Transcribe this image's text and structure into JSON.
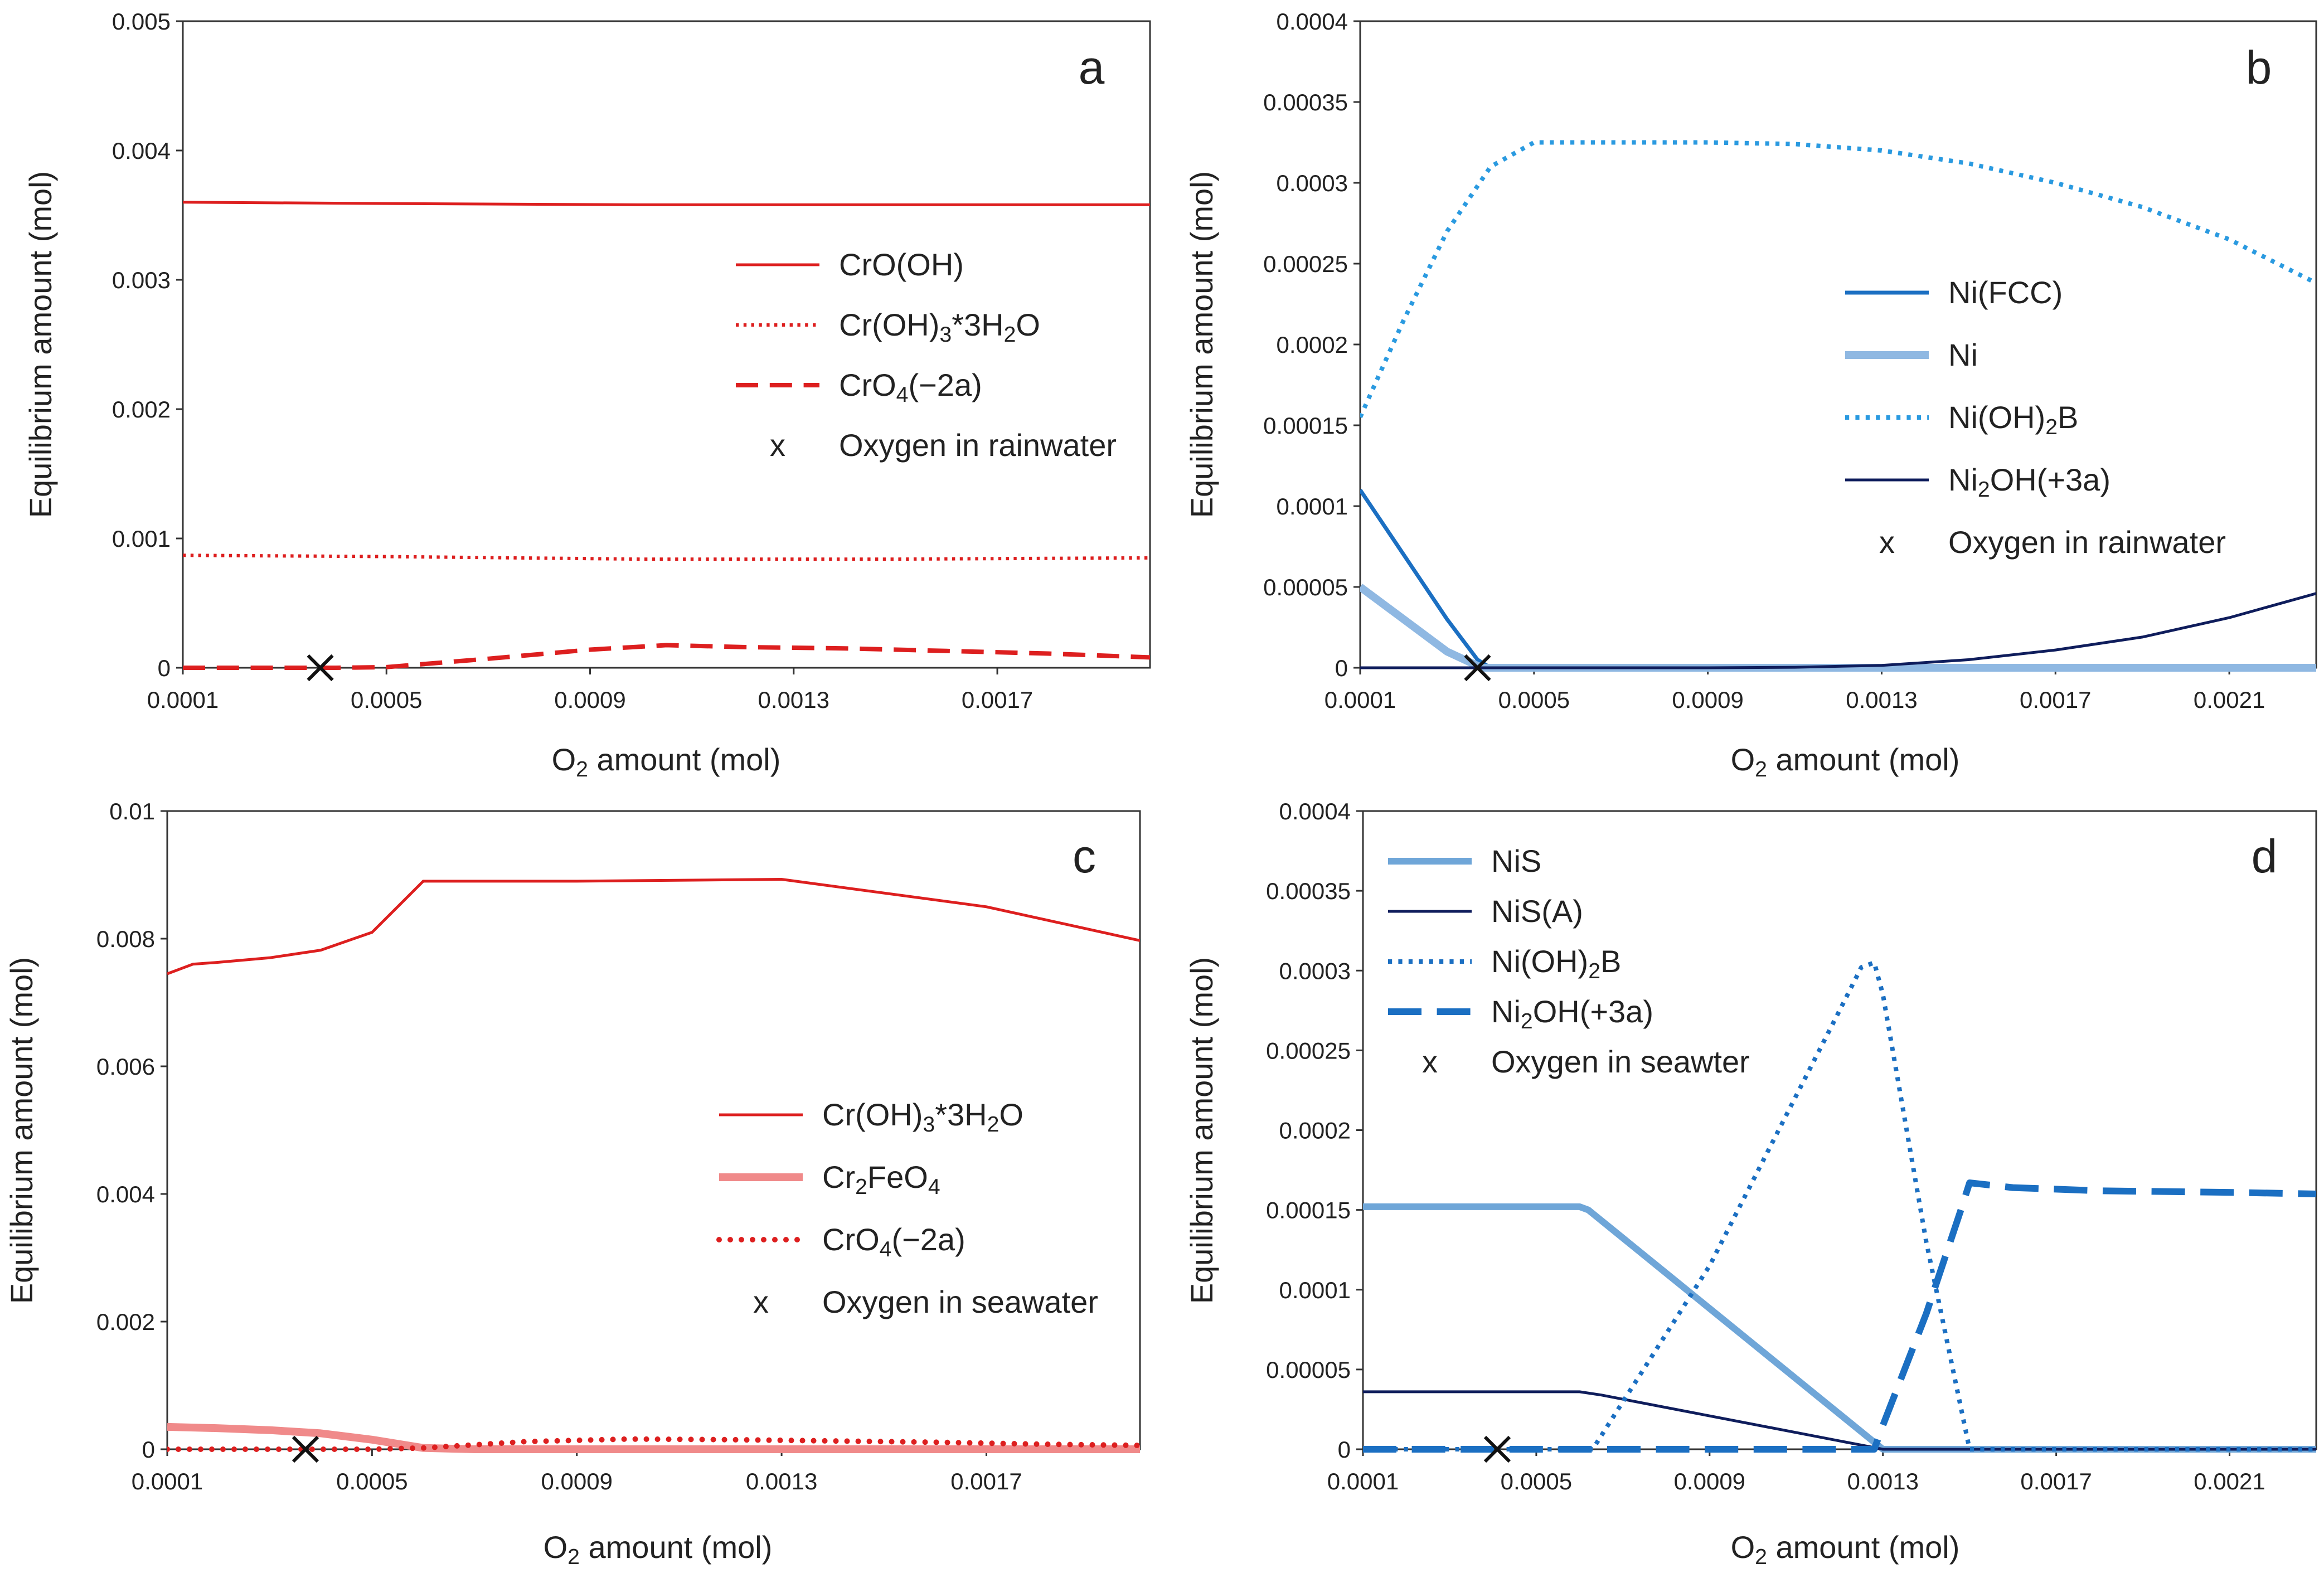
{
  "chart_data": [
    {
      "type": "line",
      "panel": "a",
      "xlabel": {
        "base": "O",
        "sub": "2",
        "rest": " amount (mol)"
      },
      "ylabel": "Equilibrium amount (mol)",
      "xlim": [
        0.0001,
        0.002
      ],
      "ylim": [
        0,
        0.005
      ],
      "xticks": [
        "0.0001",
        "0.0005",
        "0.0009",
        "0.0013",
        "0.0017"
      ],
      "xtick_values": [
        0.0001,
        0.0005,
        0.0009,
        0.0013,
        0.0017
      ],
      "yticks": [
        "0",
        "0.001",
        "0.002",
        "0.003",
        "0.004",
        "0.005"
      ],
      "ytick_values": [
        0,
        0.001,
        0.002,
        0.003,
        0.004,
        0.005
      ],
      "legend_position": "middle-right",
      "series": [
        {
          "name": "CrO(OH)",
          "label": [
            [
              "t",
              "CrO(OH)"
            ]
          ],
          "color": "#dd1f1f",
          "style": "solid",
          "width": 5,
          "x": [
            0.0001,
            0.0005,
            0.001,
            0.0015,
            0.002
          ],
          "y": [
            0.0036,
            0.00359,
            0.00358,
            0.00358,
            0.00358
          ]
        },
        {
          "name": "Cr(OH)3*3H2O",
          "label": [
            [
              "t",
              "Cr(OH)"
            ],
            [
              "s",
              "3"
            ],
            [
              "t",
              "*3H"
            ],
            [
              "s",
              "2"
            ],
            [
              "t",
              "O"
            ]
          ],
          "color": "#dd1f1f",
          "style": "dotted",
          "width": 6,
          "x": [
            0.0001,
            0.0005,
            0.001,
            0.0015,
            0.002
          ],
          "y": [
            0.00087,
            0.00086,
            0.00084,
            0.00084,
            0.00085
          ]
        },
        {
          "name": "CrO4(-2a)",
          "label": [
            [
              "t",
              "CrO"
            ],
            [
              "s",
              "4"
            ],
            [
              "t",
              "(−2a)"
            ]
          ],
          "color": "#dd1f1f",
          "style": "dashed",
          "width": 8,
          "x": [
            0.0001,
            0.0004,
            0.0005,
            0.0007,
            0.0009,
            0.00105,
            0.0012,
            0.0014,
            0.0016,
            0.0018,
            0.002
          ],
          "y": [
            0,
            0,
            5e-06,
            7e-05,
            0.00014,
            0.000175,
            0.00016,
            0.00015,
            0.00013,
            0.00011,
            8e-05
          ]
        }
      ],
      "marker": {
        "name": "Oxygen in rainwater",
        "x": 0.00037,
        "y": 0
      }
    },
    {
      "type": "line",
      "panel": "b",
      "xlabel": {
        "base": "O",
        "sub": "2",
        "rest": " amount (mol)"
      },
      "ylabel": "Equilibrium amount (mol)",
      "xlim": [
        0.0001,
        0.0023
      ],
      "ylim": [
        0,
        0.0004
      ],
      "xticks": [
        "0.0001",
        "0.0005",
        "0.0009",
        "0.0013",
        "0.0017",
        "0.0021"
      ],
      "xtick_values": [
        0.0001,
        0.0005,
        0.0009,
        0.0013,
        0.0017,
        0.0021
      ],
      "yticks": [
        "0",
        "0.00005",
        "0.0001",
        "0.00015",
        "0.0002",
        "0.00025",
        "0.0003",
        "0.00035",
        "0.0004"
      ],
      "ytick_values": [
        0,
        5e-05,
        0.0001,
        0.00015,
        0.0002,
        0.00025,
        0.0003,
        0.00035,
        0.0004
      ],
      "legend_position": "middle-right",
      "series": [
        {
          "name": "Ni(FCC)",
          "label": [
            [
              "t",
              "Ni(FCC)"
            ]
          ],
          "color": "#1b6fc2",
          "style": "solid",
          "width": 7,
          "x": [
            0.0001,
            0.0002,
            0.0003,
            0.00037,
            0.0004,
            0.001,
            0.0023
          ],
          "y": [
            0.00011,
            7e-05,
            3e-05,
            5e-06,
            0,
            0,
            0
          ]
        },
        {
          "name": "Ni",
          "label": [
            [
              "t",
              "Ni"
            ]
          ],
          "color": "#8fb8e2",
          "style": "solid",
          "width": 14,
          "x": [
            0.0001,
            0.0002,
            0.0003,
            0.00038,
            0.0004,
            0.001,
            0.0023
          ],
          "y": [
            5e-05,
            3e-05,
            1e-05,
            0,
            0,
            0,
            0
          ]
        },
        {
          "name": "Ni(OH)2B",
          "label": [
            [
              "t",
              "Ni(OH)"
            ],
            [
              "s",
              "2"
            ],
            [
              "t",
              "B"
            ]
          ],
          "color": "#2a9ae0",
          "style": "dotted",
          "width": 8,
          "x": [
            0.0001,
            0.0002,
            0.0003,
            0.0004,
            0.0005,
            0.0007,
            0.0009,
            0.0011,
            0.0013,
            0.0015,
            0.0017,
            0.0019,
            0.0021,
            0.0023
          ],
          "y": [
            0.000155,
            0.000215,
            0.00027,
            0.00031,
            0.000325,
            0.000325,
            0.000325,
            0.000324,
            0.00032,
            0.000312,
            0.0003,
            0.000285,
            0.000265,
            0.000238
          ]
        },
        {
          "name": "Ni2OH(+3a)",
          "label": [
            [
              "t",
              "Ni"
            ],
            [
              "s",
              "2"
            ],
            [
              "t",
              "OH(+3a)"
            ]
          ],
          "color": "#0f1d5c",
          "style": "solid",
          "width": 5,
          "x": [
            0.0001,
            0.0009,
            0.0011,
            0.0013,
            0.0015,
            0.0017,
            0.0019,
            0.0021,
            0.0023
          ],
          "y": [
            0,
            0,
            3e-07,
            1.5e-06,
            5e-06,
            1.1e-05,
            1.9e-05,
            3.1e-05,
            4.6e-05
          ]
        }
      ],
      "marker": {
        "name": "Oxygen in rainwater",
        "x": 0.00037,
        "y": 0
      }
    },
    {
      "type": "line",
      "panel": "c",
      "xlabel": {
        "base": "O",
        "sub": "2",
        "rest": " amount (mol)"
      },
      "ylabel": "Equilibrium amount (mol)",
      "xlim": [
        0.0001,
        0.002
      ],
      "ylim": [
        0,
        0.01
      ],
      "xticks": [
        "0.0001",
        "0.0005",
        "0.0009",
        "0.0013",
        "0.0017"
      ],
      "xtick_values": [
        0.0001,
        0.0005,
        0.0009,
        0.0013,
        0.0017
      ],
      "yticks": [
        "0",
        "0.002",
        "0.004",
        "0.006",
        "0.008",
        "0.01"
      ],
      "ytick_values": [
        0,
        0.002,
        0.004,
        0.006,
        0.008,
        0.01
      ],
      "legend_position": "lower-right",
      "series": [
        {
          "name": "Cr(OH)3*3H2O",
          "label": [
            [
              "t",
              "Cr(OH)"
            ],
            [
              "s",
              "3"
            ],
            [
              "t",
              "*3H"
            ],
            [
              "s",
              "2"
            ],
            [
              "t",
              "O"
            ]
          ],
          "color": "#dd1f1f",
          "style": "solid",
          "width": 5,
          "x": [
            0.0001,
            0.00015,
            0.0002,
            0.0003,
            0.0004,
            0.0005,
            0.00055,
            0.0006,
            0.0009,
            0.0013,
            0.0017,
            0.002
          ],
          "y": [
            0.00745,
            0.0076,
            0.00763,
            0.0077,
            0.00782,
            0.0081,
            0.0085,
            0.0089,
            0.0089,
            0.00893,
            0.0085,
            0.00797
          ]
        },
        {
          "name": "Cr2FeO4",
          "label": [
            [
              "t",
              "Cr"
            ],
            [
              "s",
              "2"
            ],
            [
              "t",
              "FeO"
            ],
            [
              "s",
              "4"
            ]
          ],
          "color": "#f08a8a",
          "style": "solid",
          "width": 14,
          "x": [
            0.0001,
            0.0002,
            0.0003,
            0.0004,
            0.0005,
            0.0006,
            0.0007,
            0.002
          ],
          "y": [
            0.00035,
            0.00033,
            0.0003,
            0.00025,
            0.00015,
            2e-05,
            0,
            0
          ]
        },
        {
          "name": "CrO4(-2a)",
          "label": [
            [
              "t",
              "CrO"
            ],
            [
              "s",
              "4"
            ],
            [
              "t",
              "(−2a)"
            ]
          ],
          "color": "#dd1f1f",
          "style": "dotted-bold",
          "width": 10,
          "x": [
            0.0001,
            0.0005,
            0.0006,
            0.0008,
            0.001,
            0.0012,
            0.0014,
            0.0016,
            0.0018,
            0.002
          ],
          "y": [
            0,
            0,
            2e-05,
            0.00012,
            0.00016,
            0.00015,
            0.00013,
            0.00011,
            8e-05,
            6e-05
          ]
        }
      ],
      "marker": {
        "name": "Oxygen in seawater",
        "x": 0.00037,
        "y": 0
      }
    },
    {
      "type": "line",
      "panel": "d",
      "xlabel": {
        "base": "O",
        "sub": "2",
        "rest": " amount (mol)"
      },
      "ylabel": "Equilibrium amount (mol)",
      "xlim": [
        0.0001,
        0.0023
      ],
      "ylim": [
        0,
        0.0004
      ],
      "xticks": [
        "0.0001",
        "0.0005",
        "0.0009",
        "0.0013",
        "0.0017",
        "0.0021"
      ],
      "xtick_values": [
        0.0001,
        0.0005,
        0.0009,
        0.0013,
        0.0017,
        0.0021
      ],
      "yticks": [
        "0",
        "0.00005",
        "0.0001",
        "0.00015",
        "0.0002",
        "0.00025",
        "0.0003",
        "0.00035",
        "0.0004"
      ],
      "ytick_values": [
        0,
        5e-05,
        0.0001,
        0.00015,
        0.0002,
        0.00025,
        0.0003,
        0.00035,
        0.0004
      ],
      "legend_position": "upper-left",
      "series": [
        {
          "name": "NiS",
          "label": [
            [
              "t",
              "NiS"
            ]
          ],
          "color": "#6fa6d8",
          "style": "solid",
          "width": 12,
          "x": [
            0.0001,
            0.0006,
            0.00062,
            0.0013,
            0.0015,
            0.0023
          ],
          "y": [
            0.000152,
            0.000152,
            0.00015,
            0,
            0,
            0
          ]
        },
        {
          "name": "NiS(A)",
          "label": [
            [
              "t",
              "NiS(A)"
            ]
          ],
          "color": "#0f1d5c",
          "style": "solid",
          "width": 5,
          "x": [
            0.0001,
            0.0006,
            0.00065,
            0.0013,
            0.0014,
            0.0023
          ],
          "y": [
            3.6e-05,
            3.6e-05,
            3.4e-05,
            0,
            0,
            0
          ]
        },
        {
          "name": "Ni(OH)2B",
          "label": [
            [
              "t",
              "Ni(OH)"
            ],
            [
              "s",
              "2"
            ],
            [
              "t",
              "B"
            ]
          ],
          "color": "#1b6fc2",
          "style": "dotted",
          "width": 8,
          "x": [
            0.0001,
            0.0006,
            0.00063,
            0.0009,
            0.0012,
            0.00125,
            0.00128,
            0.0013,
            0.0014,
            0.0015,
            0.0016,
            0.0023
          ],
          "y": [
            0,
            0,
            0,
            0.000115,
            0.000275,
            0.000302,
            0.000305,
            0.000285,
            0.00013,
            0,
            0,
            0
          ]
        },
        {
          "name": "Ni2OH(+3a)",
          "label": [
            [
              "t",
              "Ni"
            ],
            [
              "s",
              "2"
            ],
            [
              "t",
              "OH(+3a)"
            ]
          ],
          "color": "#1b6fc2",
          "style": "dashed-bold",
          "width": 12,
          "x": [
            0.0001,
            0.00128,
            0.0013,
            0.0014,
            0.00148,
            0.0015,
            0.0016,
            0.0018,
            0.0021,
            0.0023
          ],
          "y": [
            0,
            0,
            1.5e-05,
            8.5e-05,
            0.00015,
            0.000167,
            0.000164,
            0.000162,
            0.000161,
            0.00016
          ]
        }
      ],
      "marker": {
        "name": "Oxygen in seawter",
        "x": 0.00041,
        "y": 0
      }
    }
  ]
}
